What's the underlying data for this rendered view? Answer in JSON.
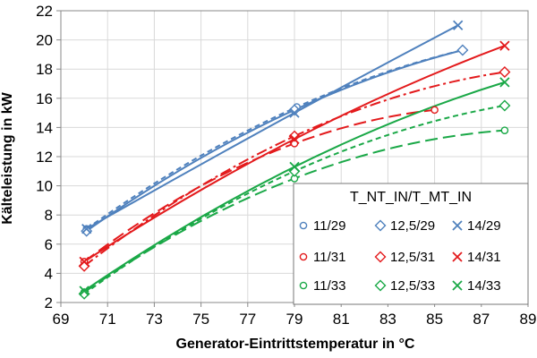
{
  "chart_data": {
    "type": "line",
    "xlabel": "Generator-Eintrittstemperatur in °C",
    "ylabel": "Kälteleistung in kW",
    "xlim": [
      69,
      89
    ],
    "ylim": [
      2,
      22
    ],
    "xticks": [
      "69",
      "71",
      "73",
      "75",
      "77",
      "79",
      "81",
      "83",
      "85",
      "87",
      "89"
    ],
    "yticks": [
      "2",
      "4",
      "6",
      "8",
      "10",
      "12",
      "14",
      "16",
      "18",
      "20",
      "22"
    ],
    "grid": true,
    "legend": {
      "title": "T_NT_IN/T_MT_IN",
      "placement": "bottom-right"
    },
    "series": [
      {
        "name": "11/29",
        "color": "#4f81bd",
        "marker": "circle",
        "dash": "short",
        "points": [
          [
            70.1,
            7.05
          ],
          [
            79.1,
            15.4
          ],
          [
            86.2,
            19.3
          ]
        ]
      },
      {
        "name": "12,5/29",
        "color": "#4f81bd",
        "marker": "diamond",
        "dash": "solid",
        "points": [
          [
            70.1,
            6.9
          ],
          [
            79.0,
            15.2
          ],
          [
            86.2,
            19.3
          ]
        ]
      },
      {
        "name": "14/29",
        "color": "#4f81bd",
        "marker": "x",
        "dash": "solid",
        "points": [
          [
            70.1,
            7.05
          ],
          [
            79.0,
            15.0
          ],
          [
            86.0,
            21.0
          ]
        ]
      },
      {
        "name": "11/31",
        "color": "#e31a1c",
        "marker": "circle",
        "dash": "long",
        "points": [
          [
            70.0,
            4.8
          ],
          [
            79.0,
            12.9
          ],
          [
            85.0,
            15.2
          ]
        ]
      },
      {
        "name": "12,5/31",
        "color": "#e31a1c",
        "marker": "diamond",
        "dash": "dashdot",
        "points": [
          [
            70.0,
            4.5
          ],
          [
            79.0,
            13.4
          ],
          [
            88.0,
            17.8
          ]
        ]
      },
      {
        "name": "14/31",
        "color": "#e31a1c",
        "marker": "x",
        "dash": "solid",
        "points": [
          [
            70.0,
            4.8
          ],
          [
            79.0,
            13.2
          ],
          [
            88.0,
            19.6
          ]
        ]
      },
      {
        "name": "11/33",
        "color": "#1aa847",
        "marker": "circle",
        "dash": "long",
        "points": [
          [
            70.0,
            2.7
          ],
          [
            79.0,
            10.5
          ],
          [
            88.0,
            13.8
          ]
        ]
      },
      {
        "name": "12,5/33",
        "color": "#1aa847",
        "marker": "diamond",
        "dash": "short",
        "points": [
          [
            70.0,
            2.6
          ],
          [
            79.0,
            11.0
          ],
          [
            88.0,
            15.5
          ]
        ]
      },
      {
        "name": "14/33",
        "color": "#1aa847",
        "marker": "x",
        "dash": "solid",
        "points": [
          [
            70.0,
            2.8
          ],
          [
            79.0,
            11.3
          ],
          [
            88.0,
            17.1
          ]
        ]
      }
    ]
  }
}
